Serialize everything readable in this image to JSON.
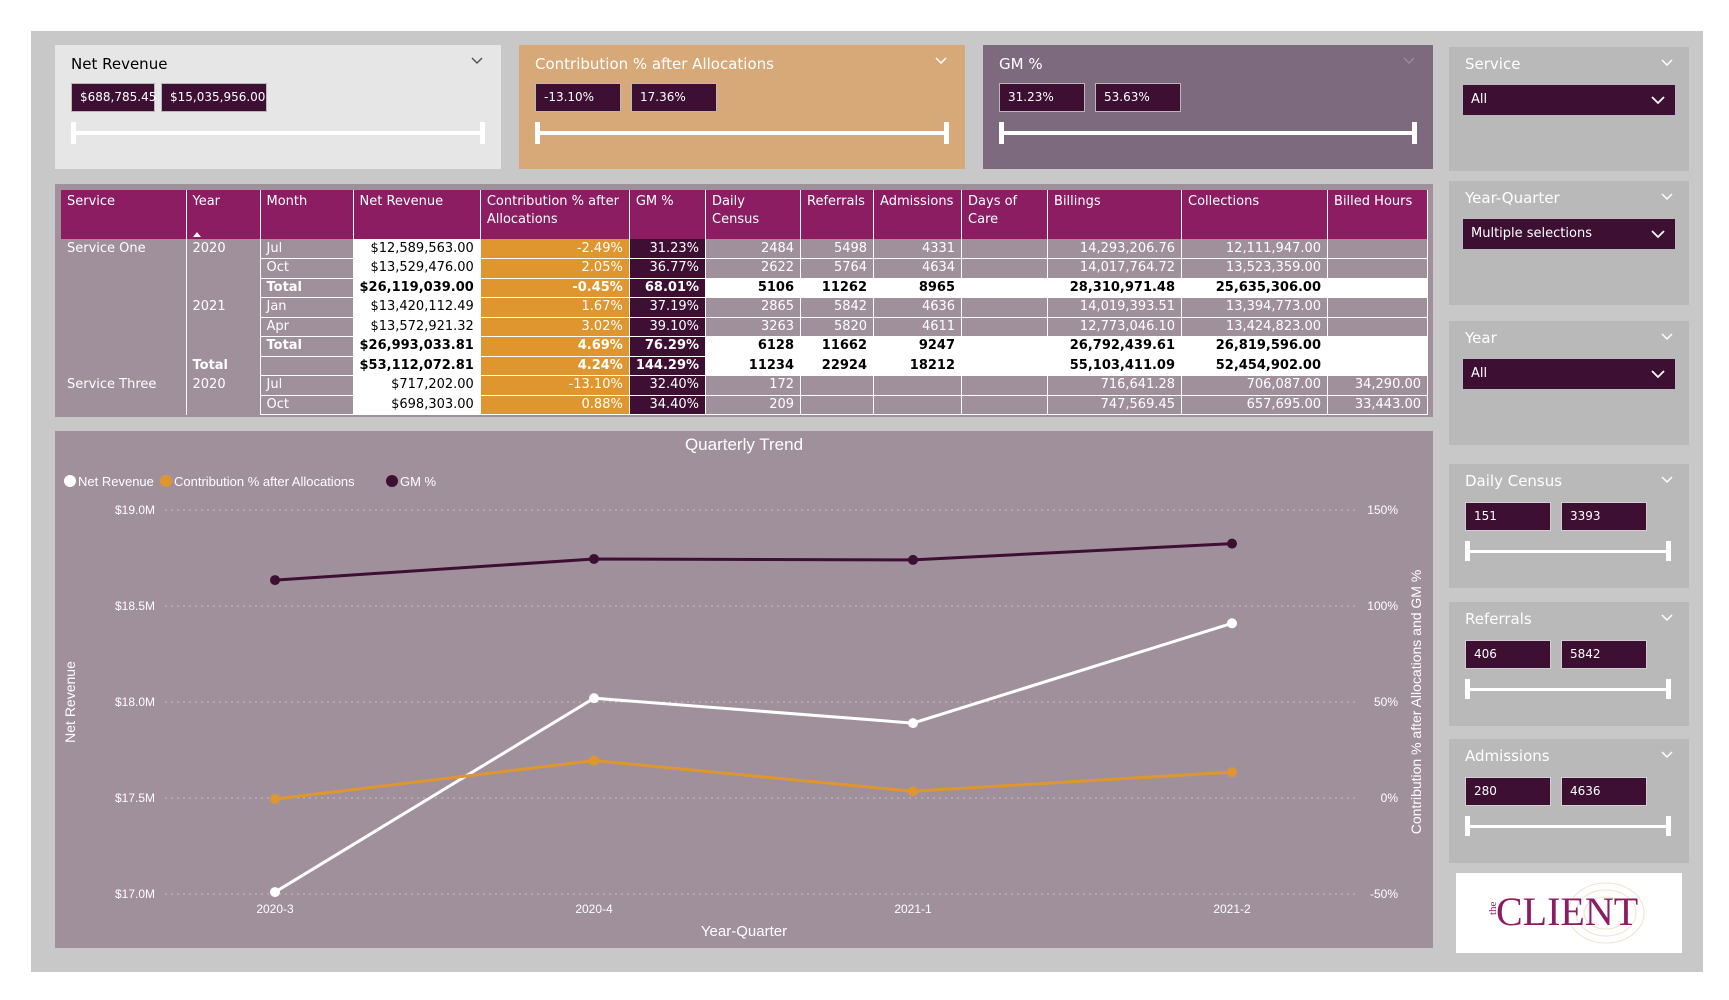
{
  "colors": {
    "plum": "#3d0f33",
    "magenta": "#8c1d63",
    "orange": "#e0962e",
    "mauve": "#a0909c",
    "tan": "#d7a979",
    "grape": "#7e6a7e"
  },
  "top_slicers": [
    {
      "title": "Net Revenue",
      "min": "$688,785.45",
      "max": "$15,035,956.00"
    },
    {
      "title": "Contribution % after Allocations",
      "min": "-13.10%",
      "max": "17.36%"
    },
    {
      "title": "GM %",
      "min": "31.23%",
      "max": "53.63%"
    }
  ],
  "right_slicers": {
    "service": {
      "title": "Service",
      "value": "All"
    },
    "year_quarter": {
      "title": "Year-Quarter",
      "value": "Multiple selections"
    },
    "year": {
      "title": "Year",
      "value": "All"
    },
    "daily_census": {
      "title": "Daily Census",
      "min": "151",
      "max": "3393"
    },
    "referrals": {
      "title": "Referrals",
      "min": "406",
      "max": "5842"
    },
    "admissions": {
      "title": "Admissions",
      "min": "280",
      "max": "4636"
    }
  },
  "matrix": {
    "headers": [
      "Service",
      "Year",
      "Month",
      "Net Revenue",
      "Contribution % after Allocations",
      "GM %",
      "Daily Census",
      "Referrals",
      "Admissions",
      "Days of Care",
      "Billings",
      "Collections",
      "Billed Hours"
    ],
    "rows": [
      {
        "service": "Service One",
        "year": "2020",
        "month": "Jul",
        "nr": "$12,589,563.00",
        "cp": "-2.49%",
        "gm": "31.23%",
        "dc": "2484",
        "ref": "5498",
        "adm": "4331",
        "doc": "",
        "bill": "14,293,206.76",
        "coll": "12,111,947.00",
        "bh": ""
      },
      {
        "service": "",
        "year": "",
        "month": "Oct",
        "nr": "$13,529,476.00",
        "cp": "2.05%",
        "gm": "36.77%",
        "dc": "2622",
        "ref": "5764",
        "adm": "4634",
        "doc": "",
        "bill": "14,017,764.72",
        "coll": "13,523,359.00",
        "bh": ""
      },
      {
        "service": "",
        "year": "",
        "month": "Total",
        "nr": "$26,119,039.00",
        "cp": "-0.45%",
        "gm": "68.01%",
        "dc": "5106",
        "ref": "11262",
        "adm": "8965",
        "doc": "",
        "bill": "28,310,971.48",
        "coll": "25,635,306.00",
        "bh": "",
        "total": true
      },
      {
        "service": "",
        "year": "2021",
        "month": "Jan",
        "nr": "$13,420,112.49",
        "cp": "1.67%",
        "gm": "37.19%",
        "dc": "2865",
        "ref": "5842",
        "adm": "4636",
        "doc": "",
        "bill": "14,019,393.51",
        "coll": "13,394,773.00",
        "bh": ""
      },
      {
        "service": "",
        "year": "",
        "month": "Apr",
        "nr": "$13,572,921.32",
        "cp": "3.02%",
        "gm": "39.10%",
        "dc": "3263",
        "ref": "5820",
        "adm": "4611",
        "doc": "",
        "bill": "12,773,046.10",
        "coll": "13,424,823.00",
        "bh": ""
      },
      {
        "service": "",
        "year": "",
        "month": "Total",
        "nr": "$26,993,033.81",
        "cp": "4.69%",
        "gm": "76.29%",
        "dc": "6128",
        "ref": "11662",
        "adm": "9247",
        "doc": "",
        "bill": "26,792,439.61",
        "coll": "26,819,596.00",
        "bh": "",
        "total": true
      },
      {
        "service": "",
        "year": "Total",
        "month": "",
        "nr": "$53,112,072.81",
        "cp": "4.24%",
        "gm": "144.29%",
        "dc": "11234",
        "ref": "22924",
        "adm": "18212",
        "doc": "",
        "bill": "55,103,411.09",
        "coll": "52,454,902.00",
        "bh": "",
        "total": true,
        "grand": true
      },
      {
        "service": "Service Three",
        "year": "2020",
        "month": "Jul",
        "nr": "$717,202.00",
        "cp": "-13.10%",
        "gm": "32.40%",
        "dc": "172",
        "ref": "",
        "adm": "",
        "doc": "",
        "bill": "716,641.28",
        "coll": "706,087.00",
        "bh": "34,290.00"
      },
      {
        "service": "",
        "year": "",
        "month": "Oct",
        "nr": "$698,303.00",
        "cp": "0.88%",
        "gm": "34.40%",
        "dc": "209",
        "ref": "",
        "adm": "",
        "doc": "",
        "bill": "747,569.45",
        "coll": "657,695.00",
        "bh": "33,443.00"
      }
    ]
  },
  "chart_data": {
    "type": "line",
    "title": "Quarterly Trend",
    "xlabel": "Year-Quarter",
    "ylabel": "Net Revenue",
    "y2label": "Contribution % after Allocations and GM %",
    "categories": [
      "2020-3",
      "2020-4",
      "2021-1",
      "2021-2"
    ],
    "ylim": [
      17000000,
      19000000
    ],
    "y2lim": [
      -50,
      150
    ],
    "y_ticks": [
      "$17.0M",
      "$17.5M",
      "$18.0M",
      "$18.5M",
      "$19.0M"
    ],
    "y2_ticks": [
      "-50%",
      "0%",
      "50%",
      "100%",
      "150%"
    ],
    "legend_position": "top-left",
    "series": [
      {
        "name": "Net Revenue",
        "axis": "left",
        "color": "#ffffff",
        "values": [
          17010000,
          18020000,
          17890000,
          18410000
        ]
      },
      {
        "name": "Contribution % after Allocations",
        "axis": "right",
        "color": "#e0962e",
        "values": [
          -0.5,
          19.5,
          3.5,
          13.5
        ]
      },
      {
        "name": "GM %",
        "axis": "right",
        "color": "#3d0f33",
        "values": [
          113.5,
          124.5,
          124.0,
          132.5
        ]
      }
    ]
  },
  "logo": {
    "prefix": "the",
    "name": "CLIENT"
  }
}
